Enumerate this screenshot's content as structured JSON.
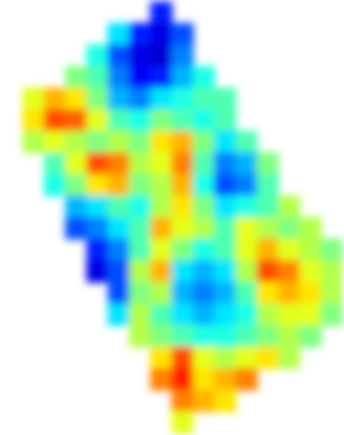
{
  "chart_data": {
    "type": "heatmap",
    "tick_labels": false,
    "color_range": [
      0,
      100
    ],
    "cells": [
      [
        null,
        null,
        null,
        null,
        null,
        null,
        null,
        15,
        null,
        null,
        null,
        null,
        null,
        null,
        null,
        null
      ],
      [
        null,
        null,
        null,
        null,
        null,
        35,
        15,
        10,
        20,
        null,
        null,
        null,
        null,
        null,
        null,
        null
      ],
      [
        null,
        null,
        null,
        null,
        40,
        20,
        10,
        8,
        25,
        null,
        null,
        null,
        null,
        null,
        null,
        null
      ],
      [
        null,
        null,
        null,
        50,
        45,
        25,
        12,
        15,
        30,
        40,
        null,
        null,
        null,
        null,
        null,
        null
      ],
      [
        null,
        60,
        70,
        65,
        50,
        30,
        25,
        35,
        40,
        45,
        45,
        null,
        null,
        null,
        null,
        null
      ],
      [
        null,
        65,
        80,
        78,
        60,
        45,
        40,
        50,
        45,
        40,
        45,
        null,
        null,
        null,
        null,
        null
      ],
      [
        null,
        55,
        60,
        55,
        50,
        55,
        50,
        65,
        70,
        50,
        35,
        45,
        null,
        null,
        null,
        null
      ],
      [
        null,
        null,
        45,
        60,
        80,
        75,
        55,
        60,
        75,
        45,
        25,
        30,
        50,
        null,
        null,
        null
      ],
      [
        null,
        null,
        40,
        50,
        65,
        70,
        50,
        55,
        70,
        40,
        20,
        25,
        45,
        null,
        null,
        null
      ],
      [
        null,
        null,
        null,
        30,
        35,
        45,
        40,
        55,
        65,
        50,
        35,
        40,
        45,
        55,
        null,
        null
      ],
      [
        null,
        null,
        null,
        20,
        25,
        35,
        45,
        70,
        60,
        55,
        45,
        60,
        55,
        50,
        55,
        null
      ],
      [
        null,
        null,
        null,
        null,
        15,
        25,
        45,
        60,
        50,
        40,
        45,
        60,
        70,
        60,
        55,
        50
      ],
      [
        null,
        null,
        null,
        null,
        10,
        20,
        55,
        70,
        35,
        30,
        35,
        55,
        80,
        75,
        60,
        55
      ],
      [
        null,
        null,
        null,
        null,
        null,
        20,
        50,
        55,
        30,
        25,
        30,
        45,
        65,
        70,
        65,
        55
      ],
      [
        null,
        null,
        null,
        null,
        null,
        35,
        55,
        45,
        35,
        30,
        35,
        40,
        55,
        60,
        60,
        50
      ],
      [
        null,
        null,
        null,
        null,
        null,
        null,
        55,
        50,
        45,
        40,
        40,
        45,
        50,
        55,
        50,
        null
      ],
      [
        null,
        null,
        null,
        null,
        null,
        null,
        null,
        65,
        80,
        60,
        55,
        60,
        65,
        55,
        null,
        null
      ],
      [
        null,
        null,
        null,
        null,
        null,
        null,
        null,
        75,
        85,
        65,
        70,
        75,
        null,
        null,
        null,
        null
      ],
      [
        null,
        null,
        null,
        null,
        null,
        null,
        null,
        null,
        75,
        70,
        65,
        null,
        null,
        null,
        null,
        null
      ],
      [
        null,
        null,
        null,
        null,
        null,
        null,
        null,
        null,
        60,
        null,
        null,
        null,
        null,
        null,
        null,
        null
      ]
    ]
  }
}
